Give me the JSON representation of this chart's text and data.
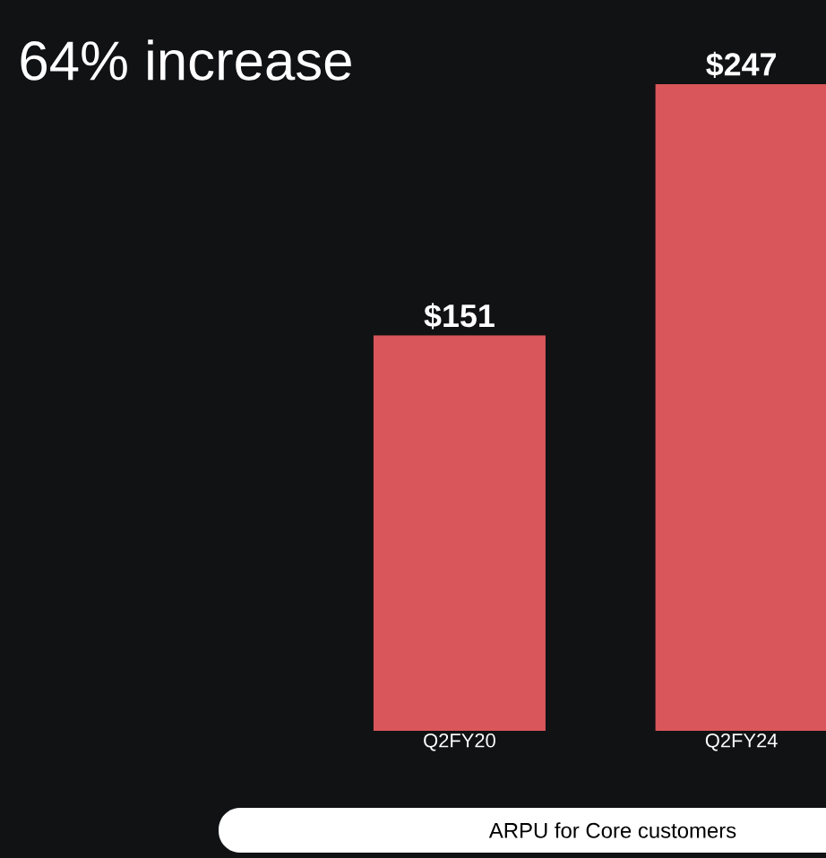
{
  "chart_data": {
    "type": "bar",
    "title": "64% increase",
    "categories": [
      "Q2FY20",
      "Q2FY24"
    ],
    "values": [
      151,
      247
    ],
    "value_labels": [
      "$151",
      "$247"
    ],
    "color": "#d9565a",
    "annotations": [
      "ARPU for Core customers"
    ]
  }
}
